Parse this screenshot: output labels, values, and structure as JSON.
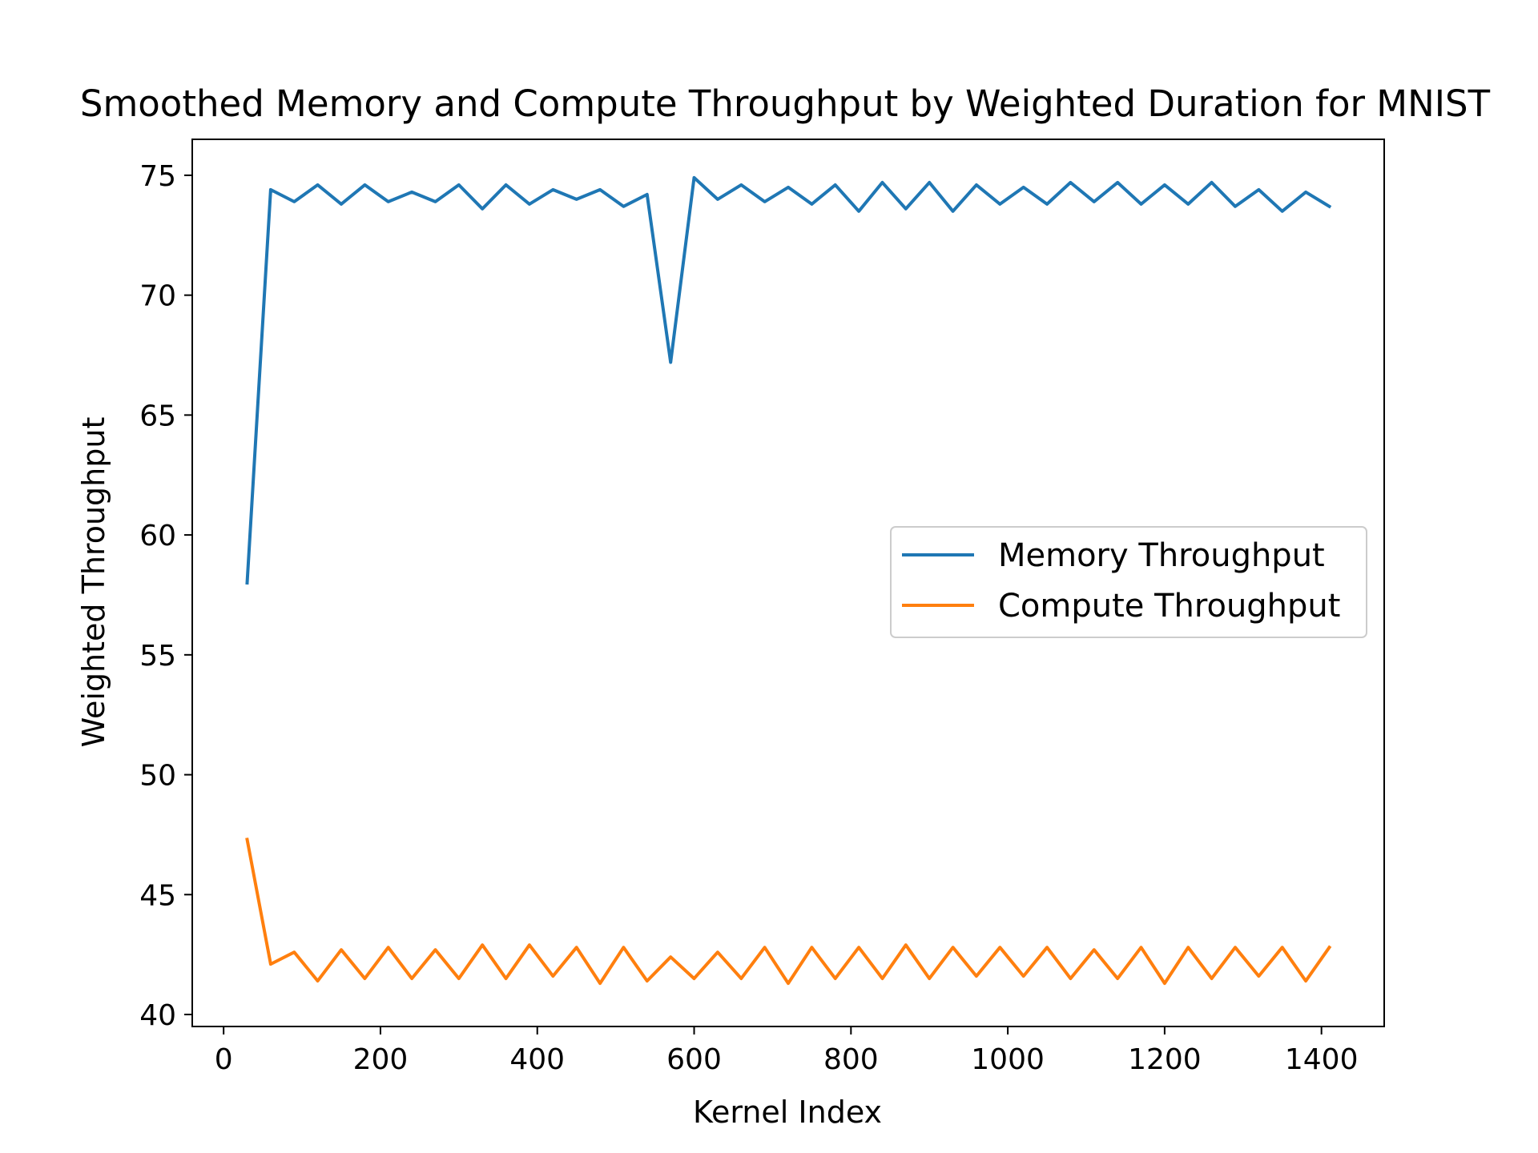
{
  "chart_data": {
    "type": "line",
    "title": "Smoothed Memory and Compute Throughput by Weighted Duration for MNIST",
    "xlabel": "Kernel Index",
    "ylabel": "Weighted Throughput",
    "xlim": [
      -40,
      1480
    ],
    "ylim": [
      39.5,
      76.5
    ],
    "xticks": [
      0,
      200,
      400,
      600,
      800,
      1000,
      1200,
      1400
    ],
    "yticks": [
      40,
      45,
      50,
      55,
      60,
      65,
      70,
      75
    ],
    "grid": false,
    "legend_position": "center-right",
    "x": [
      30,
      60,
      90,
      120,
      150,
      180,
      210,
      240,
      270,
      300,
      330,
      360,
      390,
      420,
      450,
      480,
      510,
      540,
      570,
      600,
      630,
      660,
      690,
      720,
      750,
      780,
      810,
      840,
      870,
      900,
      930,
      960,
      990,
      1020,
      1050,
      1080,
      1110,
      1140,
      1170,
      1200,
      1230,
      1260,
      1290,
      1320,
      1350,
      1380,
      1410
    ],
    "series": [
      {
        "name": "Memory Throughput",
        "color": "#1f77b4",
        "values": [
          58.0,
          74.4,
          73.9,
          74.6,
          73.8,
          74.6,
          73.9,
          74.3,
          73.9,
          74.6,
          73.6,
          74.6,
          73.8,
          74.4,
          74.0,
          74.4,
          73.7,
          74.2,
          67.2,
          74.9,
          74.0,
          74.6,
          73.9,
          74.5,
          73.8,
          74.6,
          73.5,
          74.7,
          73.6,
          74.7,
          73.5,
          74.6,
          73.8,
          74.5,
          73.8,
          74.7,
          73.9,
          74.7,
          73.8,
          74.6,
          73.8,
          74.7,
          73.7,
          74.4,
          73.5,
          74.3,
          73.7
        ]
      },
      {
        "name": "Compute Throughput",
        "color": "#ff7f0e",
        "values": [
          47.3,
          42.1,
          42.6,
          41.4,
          42.7,
          41.5,
          42.8,
          41.5,
          42.7,
          41.5,
          42.9,
          41.5,
          42.9,
          41.6,
          42.8,
          41.3,
          42.8,
          41.4,
          42.4,
          41.5,
          42.6,
          41.5,
          42.8,
          41.3,
          42.8,
          41.5,
          42.8,
          41.5,
          42.9,
          41.5,
          42.8,
          41.6,
          42.8,
          41.6,
          42.8,
          41.5,
          42.7,
          41.5,
          42.8,
          41.3,
          42.8,
          41.5,
          42.8,
          41.6,
          42.8,
          41.4,
          42.8
        ]
      }
    ]
  }
}
